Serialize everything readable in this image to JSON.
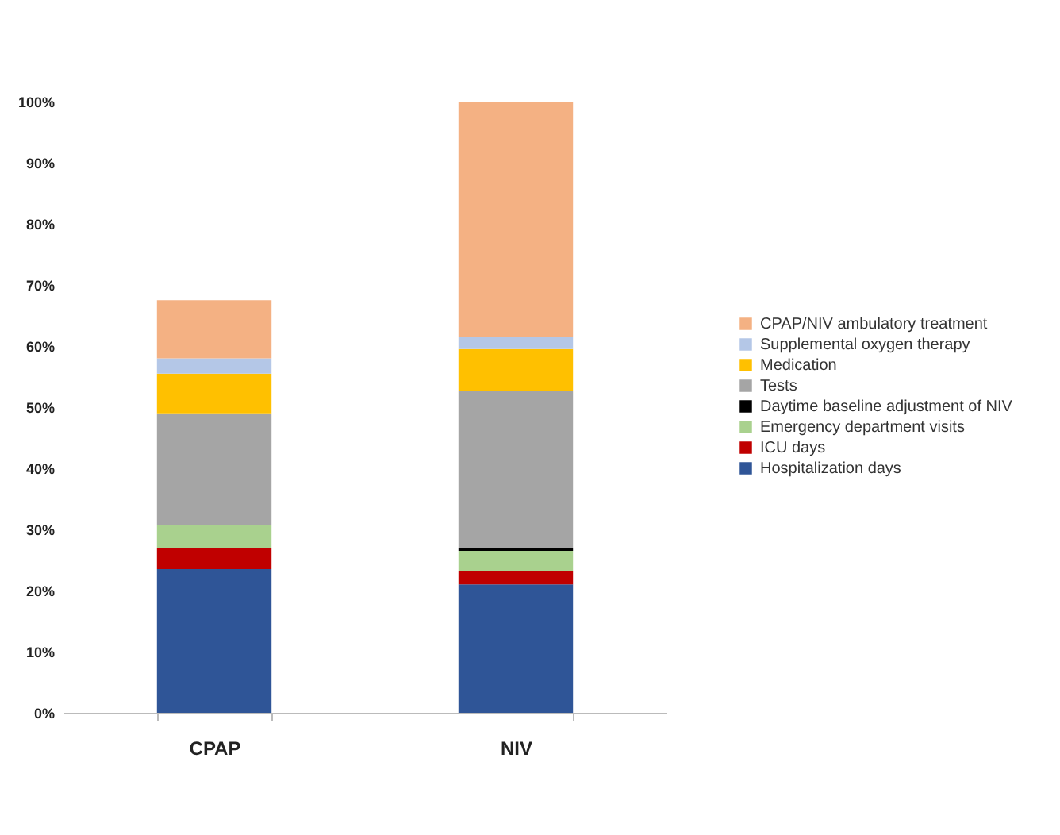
{
  "chart_data": {
    "type": "bar",
    "stacked": true,
    "categories": [
      "CPAP",
      "NIV"
    ],
    "series": [
      {
        "name": "Hospitalization days",
        "color": "#2f5597",
        "values": [
          23.5,
          21
        ]
      },
      {
        "name": "ICU days",
        "color": "#c00000",
        "values": [
          3.5,
          2.2
        ]
      },
      {
        "name": "Emergency department visits",
        "color": "#a9d18e",
        "values": [
          3.7,
          3.3
        ]
      },
      {
        "name": "Daytime baseline adjustment of NIV",
        "color": "#000000",
        "values": [
          0,
          0.5
        ]
      },
      {
        "name": "Tests",
        "color": "#a5a5a5",
        "values": [
          18.3,
          25.7
        ]
      },
      {
        "name": "Medication",
        "color": "#ffc000",
        "values": [
          6.5,
          6.8
        ]
      },
      {
        "name": "Supplemental oxygen therapy",
        "color": "#b4c7e7",
        "values": [
          2.5,
          2
        ]
      },
      {
        "name": "CPAP/NIV ambulatory treatment",
        "color": "#f4b183",
        "values": [
          9.5,
          38.5
        ]
      }
    ],
    "ylim": [
      0,
      100
    ],
    "yticks": [
      {
        "value": 0,
        "label": "0%"
      },
      {
        "value": 10,
        "label": "10%"
      },
      {
        "value": 20,
        "label": "20%"
      },
      {
        "value": 30,
        "label": "30%"
      },
      {
        "value": 40,
        "label": "40%"
      },
      {
        "value": 50,
        "label": "50%"
      },
      {
        "value": 60,
        "label": "60%"
      },
      {
        "value": 70,
        "label": "70%"
      },
      {
        "value": 80,
        "label": "80%"
      },
      {
        "value": 90,
        "label": "90%"
      },
      {
        "value": 100,
        "label": "100%"
      }
    ],
    "grid": false,
    "legend": "right"
  }
}
